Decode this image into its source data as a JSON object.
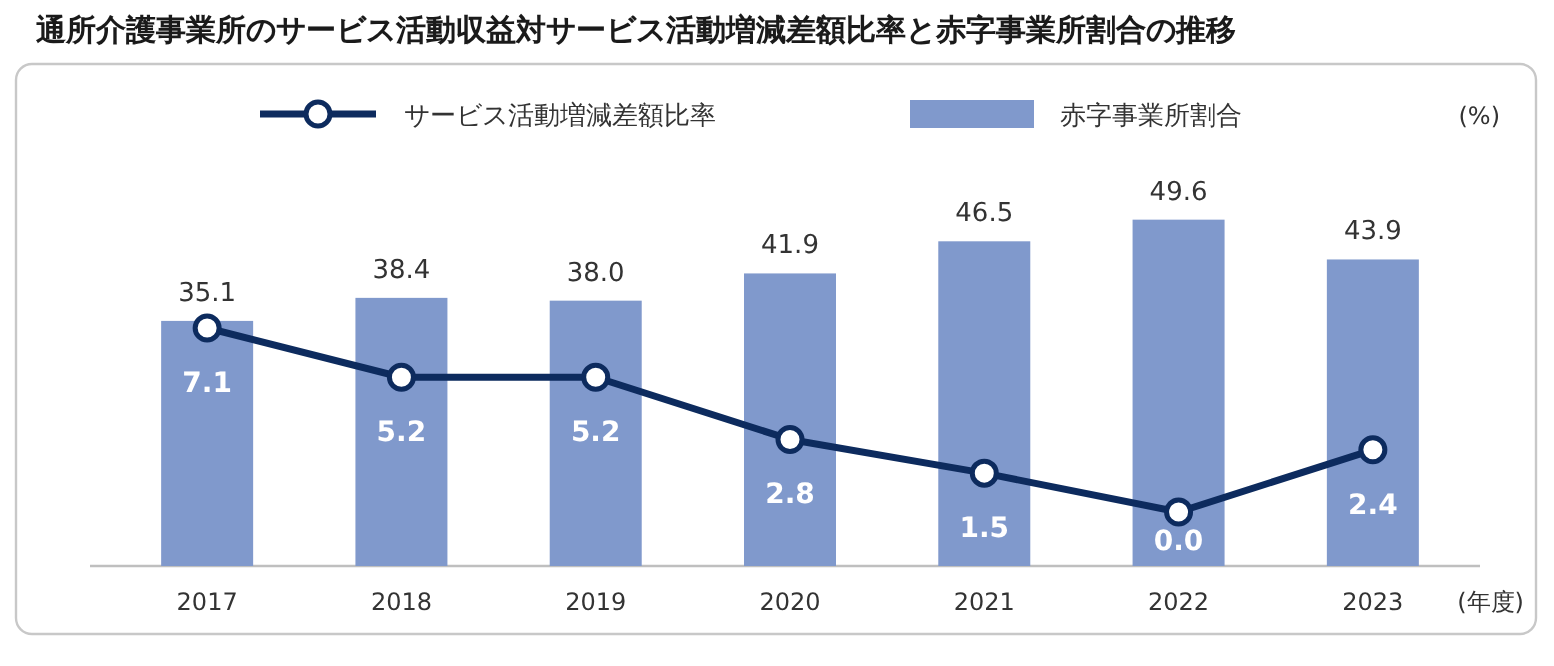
{
  "chart_data": {
    "type": "bar",
    "title": "通所介護事業所のサービス活動収益対サービス活動増減差額比率と赤字事業所割合の推移",
    "xlabel": "(年度)",
    "ylabel": "(%)",
    "categories": [
      "2017",
      "2018",
      "2019",
      "2020",
      "2021",
      "2022",
      "2023"
    ],
    "series": [
      {
        "name": "サービス活動増減差額比率",
        "type": "line",
        "axis": "y2",
        "color": "#0d2b5e",
        "marker": "circle",
        "values": [
          7.1,
          5.2,
          5.2,
          2.8,
          1.5,
          0.0,
          2.4
        ],
        "value_labels": [
          "7.1",
          "5.2",
          "5.2",
          "2.8",
          "1.5",
          "0.0",
          "2.4"
        ]
      },
      {
        "name": "赤字事業所割合",
        "color": "#8099cc",
        "values": [
          35.1,
          38.4,
          38.0,
          41.9,
          46.5,
          49.6,
          43.9
        ],
        "value_labels": [
          "35.1",
          "38.4",
          "38.0",
          "41.9",
          "46.5",
          "49.6",
          "43.9"
        ]
      }
    ],
    "tick_labels": "x",
    "legend": "top"
  }
}
